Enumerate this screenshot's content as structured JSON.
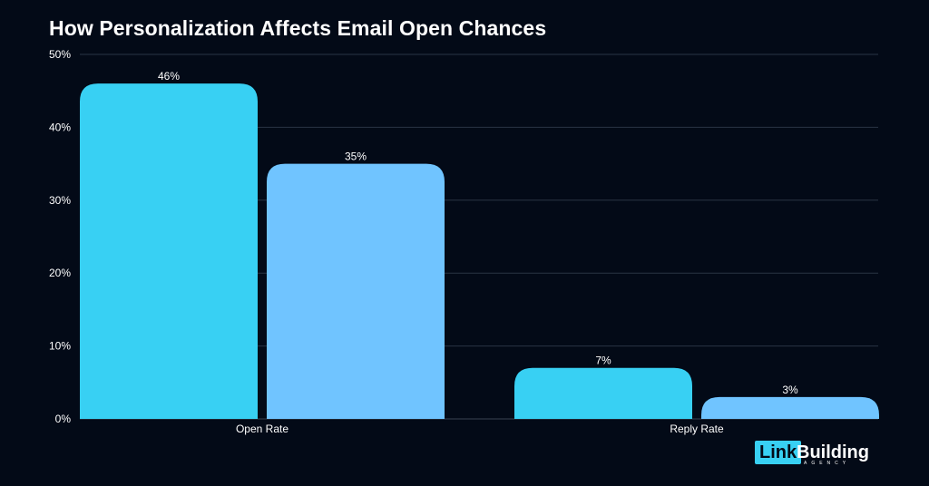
{
  "chart_data": {
    "type": "bar",
    "title": "How Personalization Affects Email Open Chances",
    "categories": [
      "Open Rate",
      "Reply Rate"
    ],
    "series": [
      {
        "values": [
          46,
          7
        ],
        "labels": [
          "46%",
          "7%"
        ],
        "color": "#38d0f3"
      },
      {
        "values": [
          35,
          3
        ],
        "labels": [
          "35%",
          "3%"
        ],
        "color": "#70c4ff"
      }
    ],
    "ylim": [
      0,
      50
    ],
    "yticks": [
      0,
      10,
      20,
      30,
      40,
      50
    ],
    "ytick_labels": [
      "0%",
      "10%",
      "20%",
      "30%",
      "40%",
      "50%"
    ],
    "grid": true,
    "xlabel": "",
    "ylabel": ""
  },
  "logo": {
    "box_text": "Link",
    "word_text": "Building",
    "sub_text": "AGENCY",
    "accent": "#38d0f3"
  },
  "colors": {
    "background": "#030a17",
    "grid": "#2a3444",
    "text": "#ffffff"
  }
}
